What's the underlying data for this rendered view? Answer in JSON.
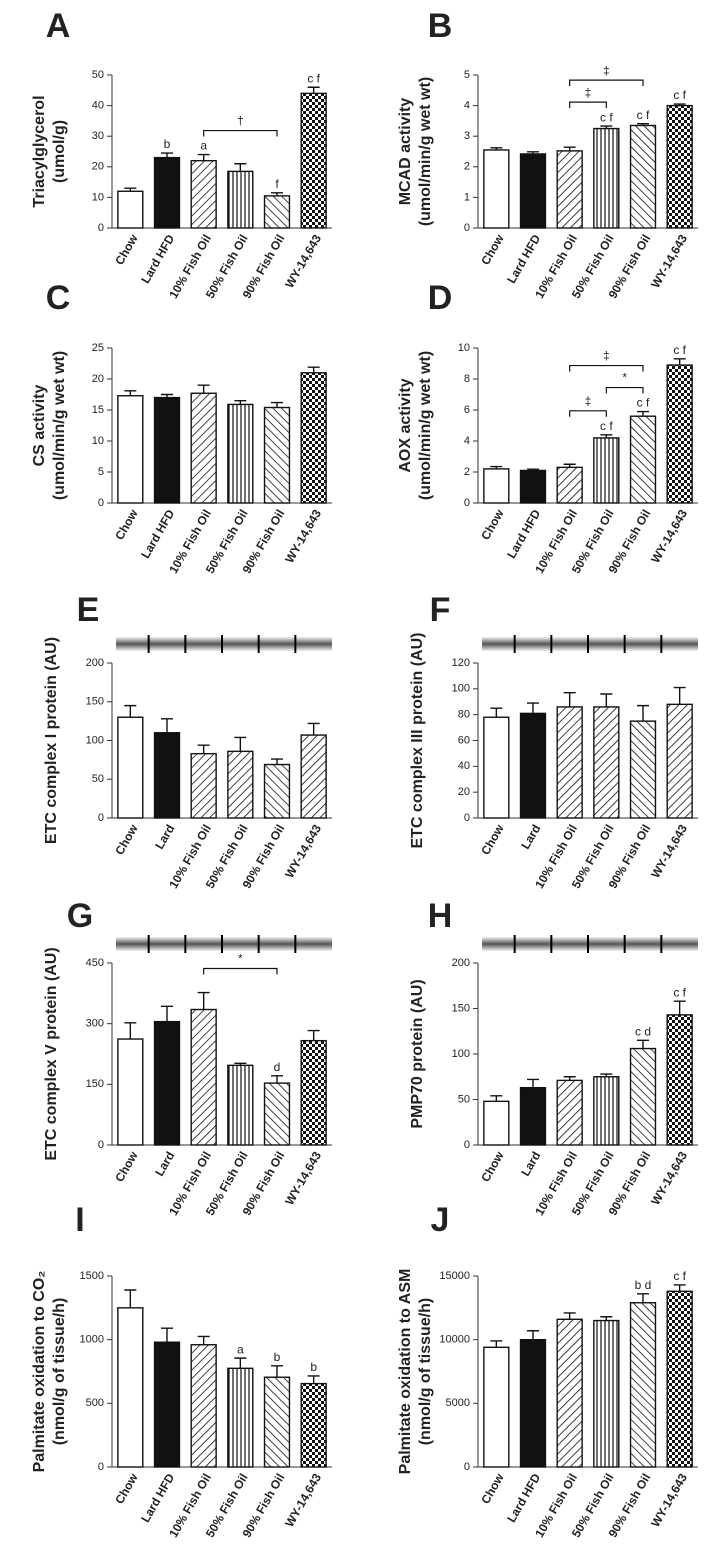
{
  "chart_data": [
    {
      "type": "bar",
      "panel": "A",
      "ylabel": [
        "Triacylglycerol",
        "(umol/g)"
      ],
      "categories": [
        "Chow",
        "Lard HFD",
        "10% Fish Oil",
        "50% Fish Oil",
        "90% Fish Oil",
        "WY-14,643"
      ],
      "values": [
        12,
        23,
        22,
        18.5,
        10.5,
        44
      ],
      "errors": [
        1,
        1.5,
        2,
        2.5,
        1,
        2
      ],
      "value_labels": [
        null,
        "b",
        "a",
        null,
        "f",
        "c f"
      ],
      "fills": [
        "open",
        "solid",
        "hatch-left",
        "vertical",
        "hatch-right",
        "checker"
      ],
      "brackets": [
        {
          "from": 2,
          "to": 4,
          "label": "†"
        }
      ],
      "ylim": [
        0,
        50
      ],
      "yticks": [
        0,
        10,
        20,
        30,
        40,
        50
      ],
      "blot": false
    },
    {
      "type": "bar",
      "panel": "B",
      "ylabel": [
        "MCAD activity",
        "(umol/min/g wet wt)"
      ],
      "categories": [
        "Chow",
        "Lard HFD",
        "10% Fish Oil",
        "50% Fish Oil",
        "90% Fish Oil",
        "WY-14,643"
      ],
      "values": [
        2.55,
        2.42,
        2.52,
        3.25,
        3.35,
        4.0
      ],
      "errors": [
        0.07,
        0.07,
        0.12,
        0.08,
        0.06,
        0.05
      ],
      "value_labels": [
        null,
        null,
        null,
        "c f",
        "c f",
        "c f"
      ],
      "fills": [
        "open",
        "solid",
        "hatch-left",
        "vertical",
        "hatch-right",
        "checker"
      ],
      "brackets": [
        {
          "from": 2,
          "to": 3,
          "label": "‡"
        },
        {
          "from": 2,
          "to": 4,
          "label": "‡"
        }
      ],
      "ylim": [
        0,
        5
      ],
      "yticks": [
        0,
        1,
        2,
        3,
        4,
        5
      ],
      "blot": false
    },
    {
      "type": "bar",
      "panel": "C",
      "ylabel": [
        "CS activity",
        "(umol/min/g wet wt)"
      ],
      "categories": [
        "Chow",
        "Lard HFD",
        "10% Fish Oil",
        "50% Fish Oil",
        "90% Fish Oil",
        "WY-14,643"
      ],
      "values": [
        17.3,
        17,
        17.7,
        15.9,
        15.4,
        21
      ],
      "errors": [
        0.8,
        0.5,
        1.3,
        0.6,
        0.8,
        0.9
      ],
      "value_labels": [
        null,
        null,
        null,
        null,
        null,
        null
      ],
      "fills": [
        "open",
        "solid",
        "hatch-left",
        "vertical",
        "hatch-right",
        "checker"
      ],
      "brackets": [],
      "ylim": [
        0,
        25
      ],
      "yticks": [
        0,
        5,
        10,
        15,
        20,
        25
      ],
      "blot": false
    },
    {
      "type": "bar",
      "panel": "D",
      "ylabel": [
        "AOX activity",
        "(umol/min/g wet wt)"
      ],
      "categories": [
        "Chow",
        "Lard HFD",
        "10% Fish Oil",
        "50% Fish Oil",
        "90% Fish Oil",
        "WY-14,643"
      ],
      "values": [
        2.2,
        2.1,
        2.3,
        4.2,
        5.6,
        8.9
      ],
      "errors": [
        0.15,
        0.08,
        0.2,
        0.2,
        0.3,
        0.4
      ],
      "value_labels": [
        null,
        null,
        null,
        "c f",
        "c f",
        "c f"
      ],
      "fills": [
        "open",
        "solid",
        "hatch-left",
        "vertical",
        "hatch-right",
        "checker"
      ],
      "brackets": [
        {
          "from": 2,
          "to": 3,
          "label": "‡"
        },
        {
          "from": 3,
          "to": 4,
          "label": "*"
        },
        {
          "from": 2,
          "to": 4,
          "label": "‡"
        }
      ],
      "ylim": [
        0,
        10
      ],
      "yticks": [
        0,
        2,
        4,
        6,
        8,
        10
      ],
      "blot": false
    },
    {
      "type": "bar",
      "panel": "E",
      "ylabel": [
        "ETC complex I protein (AU)"
      ],
      "categories": [
        "Chow",
        "Lard",
        "10% Fish Oil",
        "50% Fish Oil",
        "90% Fish Oil",
        "WY-14,643"
      ],
      "values": [
        130,
        110,
        83,
        86,
        69,
        107
      ],
      "errors": [
        15,
        18,
        11,
        18,
        7,
        15
      ],
      "value_labels": [
        null,
        null,
        null,
        null,
        null,
        null
      ],
      "fills": [
        "open",
        "solid",
        "hatch-left",
        "hatch-left",
        "hatch-right",
        "hatch-left"
      ],
      "brackets": [],
      "ylim": [
        0,
        200
      ],
      "yticks": [
        0,
        50,
        100,
        150,
        200
      ],
      "blot": true
    },
    {
      "type": "bar",
      "panel": "F",
      "ylabel": [
        "ETC complex III protein (AU)"
      ],
      "categories": [
        "Chow",
        "Lard",
        "10% Fish Oil",
        "50% Fish Oil",
        "90% Fish Oil",
        "WY-14,643"
      ],
      "values": [
        78,
        81,
        86,
        86,
        75,
        88
      ],
      "errors": [
        7,
        8,
        11,
        10,
        12,
        13
      ],
      "value_labels": [
        null,
        null,
        null,
        null,
        null,
        null
      ],
      "fills": [
        "open",
        "solid",
        "hatch-left",
        "hatch-left",
        "hatch-right",
        "hatch-left"
      ],
      "brackets": [],
      "ylim": [
        0,
        120
      ],
      "yticks": [
        0,
        20,
        40,
        60,
        80,
        100,
        120
      ],
      "blot": true
    },
    {
      "type": "bar",
      "panel": "G",
      "ylabel": [
        "ETC complex V protein (AU)"
      ],
      "categories": [
        "Chow",
        "Lard",
        "10% Fish Oil",
        "50% Fish Oil",
        "90% Fish Oil",
        "WY-14,643"
      ],
      "values": [
        262,
        305,
        335,
        197,
        153,
        258
      ],
      "errors": [
        40,
        38,
        42,
        5,
        18,
        25
      ],
      "value_labels": [
        null,
        null,
        null,
        null,
        "d",
        null
      ],
      "fills": [
        "open",
        "solid",
        "hatch-left",
        "vertical",
        "hatch-right",
        "checker"
      ],
      "brackets": [
        {
          "from": 2,
          "to": 4,
          "label": "*"
        }
      ],
      "ylim": [
        0,
        450
      ],
      "yticks": [
        0,
        150,
        300,
        450
      ],
      "blot": true
    },
    {
      "type": "bar",
      "panel": "H",
      "ylabel": [
        "PMP70 protein (AU)"
      ],
      "categories": [
        "Chow",
        "Lard",
        "10% Fish Oil",
        "50% Fish Oil",
        "90% Fish Oil",
        "WY-14,643"
      ],
      "values": [
        48,
        63,
        71,
        75,
        106,
        143
      ],
      "errors": [
        6,
        9,
        4,
        3,
        9,
        15
      ],
      "value_labels": [
        null,
        null,
        null,
        null,
        "c d",
        "c f"
      ],
      "fills": [
        "open",
        "solid",
        "hatch-left",
        "vertical",
        "hatch-right",
        "checker"
      ],
      "brackets": [],
      "ylim": [
        0,
        200
      ],
      "yticks": [
        0,
        50,
        100,
        150,
        200
      ],
      "blot": true
    },
    {
      "type": "bar",
      "panel": "I",
      "ylabel": [
        "Palmitate oxidation to CO₂",
        "(nmol/g of tissue/h)"
      ],
      "categories": [
        "Chow",
        "Lard HFD",
        "10% Fish Oil",
        "50% Fish Oil",
        "90% Fish Oil",
        "WY-14,643"
      ],
      "values": [
        1250,
        980,
        960,
        775,
        705,
        655
      ],
      "errors": [
        140,
        110,
        65,
        80,
        90,
        60
      ],
      "value_labels": [
        null,
        null,
        null,
        "a",
        "b",
        "b"
      ],
      "fills": [
        "open",
        "solid",
        "hatch-left",
        "vertical",
        "hatch-right",
        "checker"
      ],
      "brackets": [],
      "ylim": [
        0,
        1500
      ],
      "yticks": [
        0,
        500,
        1000,
        1500
      ],
      "blot": false
    },
    {
      "type": "bar",
      "panel": "J",
      "ylabel": [
        "Palmitate oxidation to ASM",
        "(nmol/g of tissue/h)"
      ],
      "categories": [
        "Chow",
        "Lard HFD",
        "10% Fish Oil",
        "50% Fish Oil",
        "90% Fish Oil",
        "WY-14,643"
      ],
      "values": [
        9400,
        10000,
        11600,
        11500,
        12900,
        13800
      ],
      "errors": [
        500,
        700,
        500,
        300,
        700,
        500
      ],
      "value_labels": [
        null,
        null,
        null,
        null,
        "b d",
        "c f"
      ],
      "fills": [
        "open",
        "solid",
        "hatch-left",
        "vertical",
        "hatch-right",
        "checker"
      ],
      "brackets": [],
      "ylim": [
        0,
        15000
      ],
      "yticks": [
        0,
        5000,
        10000,
        15000
      ],
      "blot": false
    }
  ]
}
